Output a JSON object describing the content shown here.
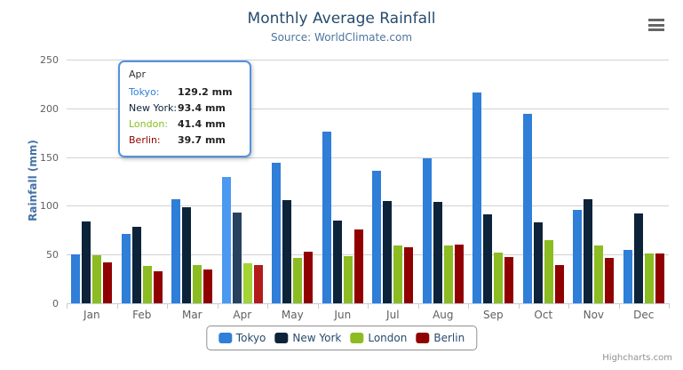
{
  "chart": {
    "title": "Monthly Average Rainfall",
    "subtitle": "Source: WorldClimate.com",
    "credits": "Highcharts.com"
  },
  "chart_data": {
    "type": "bar",
    "title": "Monthly Average Rainfall",
    "subtitle": "Source: WorldClimate.com",
    "xlabel": "",
    "ylabel": "Rainfall (mm)",
    "ylim": [
      0,
      250
    ],
    "y_ticks": [
      0,
      50,
      100,
      150,
      200,
      250
    ],
    "grid": true,
    "legend_position": "bottom",
    "hovered_category": "Apr",
    "categories": [
      "Jan",
      "Feb",
      "Mar",
      "Apr",
      "May",
      "Jun",
      "Jul",
      "Aug",
      "Sep",
      "Oct",
      "Nov",
      "Dec"
    ],
    "series": [
      {
        "name": "Tokyo",
        "color": "#2f7ed8",
        "hover_color": "#4b99f0",
        "values": [
          49.9,
          71.5,
          106.4,
          129.2,
          144.0,
          176.0,
          135.6,
          148.5,
          216.4,
          194.1,
          95.6,
          54.4
        ]
      },
      {
        "name": "New York",
        "color": "#0d233a",
        "hover_color": "#28415e",
        "values": [
          83.6,
          78.8,
          98.5,
          93.4,
          106.0,
          84.5,
          105.0,
          104.3,
          91.2,
          83.5,
          106.6,
          92.3
        ]
      },
      {
        "name": "London",
        "color": "#8bbc21",
        "hover_color": "#a2d434",
        "values": [
          48.9,
          38.8,
          39.3,
          41.4,
          47.0,
          48.3,
          59.0,
          59.6,
          52.4,
          65.2,
          59.3,
          51.2
        ]
      },
      {
        "name": "Berlin",
        "color": "#910000",
        "hover_color": "#b31b1b",
        "values": [
          42.4,
          33.2,
          34.5,
          39.7,
          52.6,
          75.5,
          57.4,
          60.4,
          47.6,
          39.1,
          46.8,
          51.1
        ]
      }
    ]
  },
  "tooltip": {
    "header": "Apr",
    "rows": [
      {
        "label": "Tokyo:",
        "value": "129.2 mm",
        "color": "#2f7ed8"
      },
      {
        "label": "New York:",
        "value": "93.4 mm",
        "color": "#0d233a"
      },
      {
        "label": "London:",
        "value": "41.4 mm",
        "color": "#8bbc21"
      },
      {
        "label": "Berlin:",
        "value": "39.7 mm",
        "color": "#910000"
      }
    ]
  }
}
